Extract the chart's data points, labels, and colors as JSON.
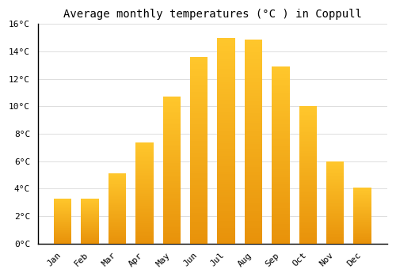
{
  "title": "Average monthly temperatures (°C ) in Coppull",
  "months": [
    "Jan",
    "Feb",
    "Mar",
    "Apr",
    "May",
    "Jun",
    "Jul",
    "Aug",
    "Sep",
    "Oct",
    "Nov",
    "Dec"
  ],
  "values": [
    3.3,
    3.3,
    5.1,
    7.4,
    10.7,
    13.6,
    15.0,
    14.9,
    12.9,
    10.0,
    6.0,
    4.1
  ],
  "bar_color_bottom": "#E8920A",
  "bar_color_top": "#FFC72C",
  "ylim": [
    0,
    16
  ],
  "yticks": [
    0,
    2,
    4,
    6,
    8,
    10,
    12,
    14,
    16
  ],
  "background_color": "#FFFFFF",
  "grid_color": "#DDDDDD",
  "title_fontsize": 10,
  "tick_fontsize": 8,
  "font_family": "monospace"
}
